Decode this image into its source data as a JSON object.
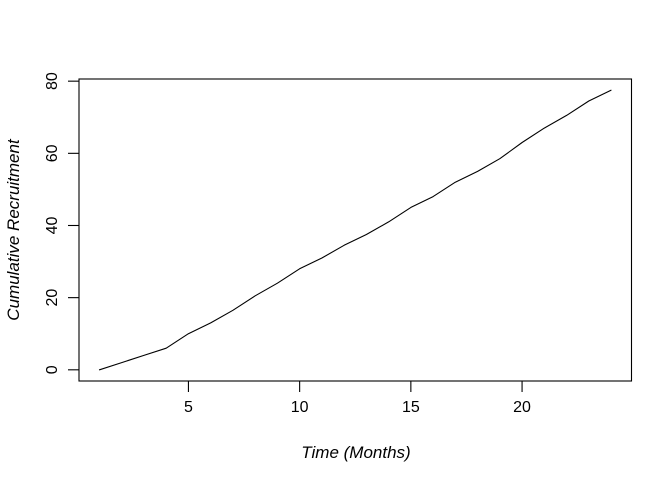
{
  "figure": {
    "background": "#ffffff"
  },
  "chart_data": {
    "type": "line",
    "title": "",
    "xlabel": "Time (Months)",
    "ylabel": "Cumulative Recruitment",
    "series_name": "Cumulative Recruitment",
    "x": [
      1,
      2,
      3,
      4,
      5,
      6,
      7,
      8,
      9,
      10,
      11,
      12,
      13,
      14,
      15,
      16,
      17,
      18,
      19,
      20,
      21,
      22,
      23,
      24
    ],
    "values": [
      0,
      2,
      4,
      6,
      10,
      13,
      16.5,
      20.5,
      24,
      28,
      31,
      34.5,
      37.5,
      41,
      45,
      48,
      52,
      55,
      58.5,
      63,
      67,
      70.5,
      74.5,
      77.5
    ],
    "x_ticks": [
      5,
      10,
      15,
      20
    ],
    "y_ticks": [
      0,
      20,
      40,
      60,
      80
    ],
    "xlim": [
      0.08,
      24.92
    ],
    "ylim": [
      -3.1,
      80.6
    ],
    "grid": false,
    "legend_position": "none",
    "line_color": "#000000",
    "axis_color": "#000000",
    "text_color": "#000000"
  }
}
